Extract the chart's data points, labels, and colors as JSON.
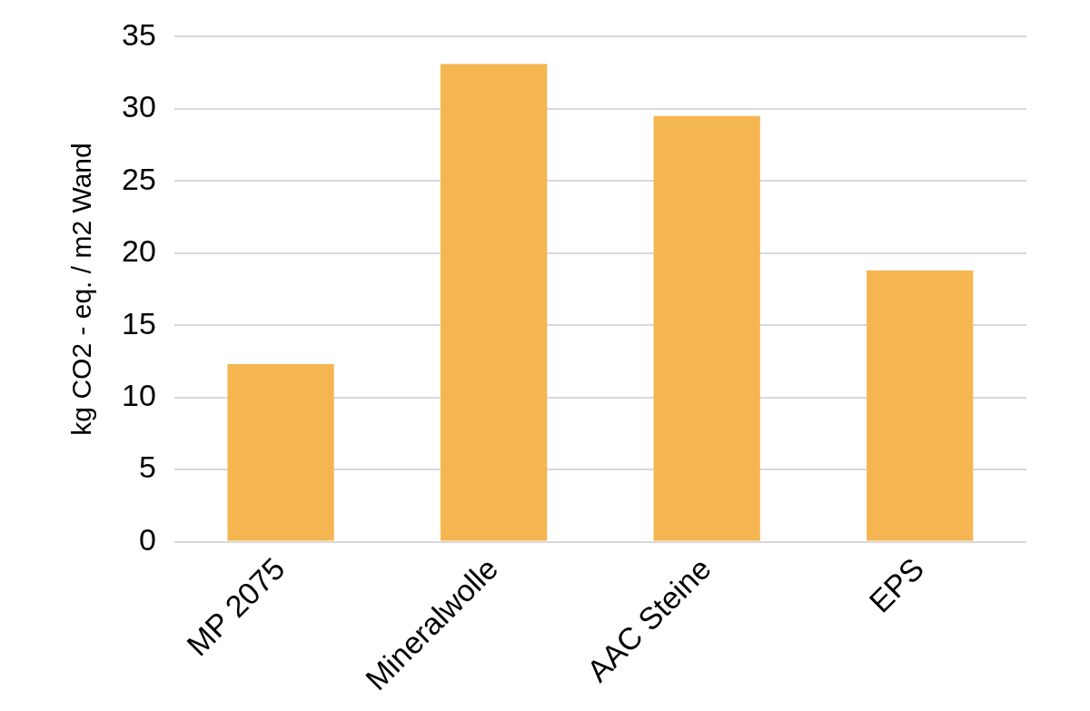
{
  "chart_data": {
    "type": "bar",
    "ylabel": "kg CO2 - eq. / m2 Wand",
    "categories": [
      "MP 2075",
      "Mineralwolle",
      "AAC Steine",
      "EPS"
    ],
    "values": [
      12.3,
      33.1,
      29.5,
      18.8
    ],
    "color": "#f5b651",
    "ylim": [
      0,
      35
    ],
    "yticks": [
      0,
      5,
      10,
      15,
      20,
      25,
      30,
      35
    ],
    "grid": "y"
  }
}
